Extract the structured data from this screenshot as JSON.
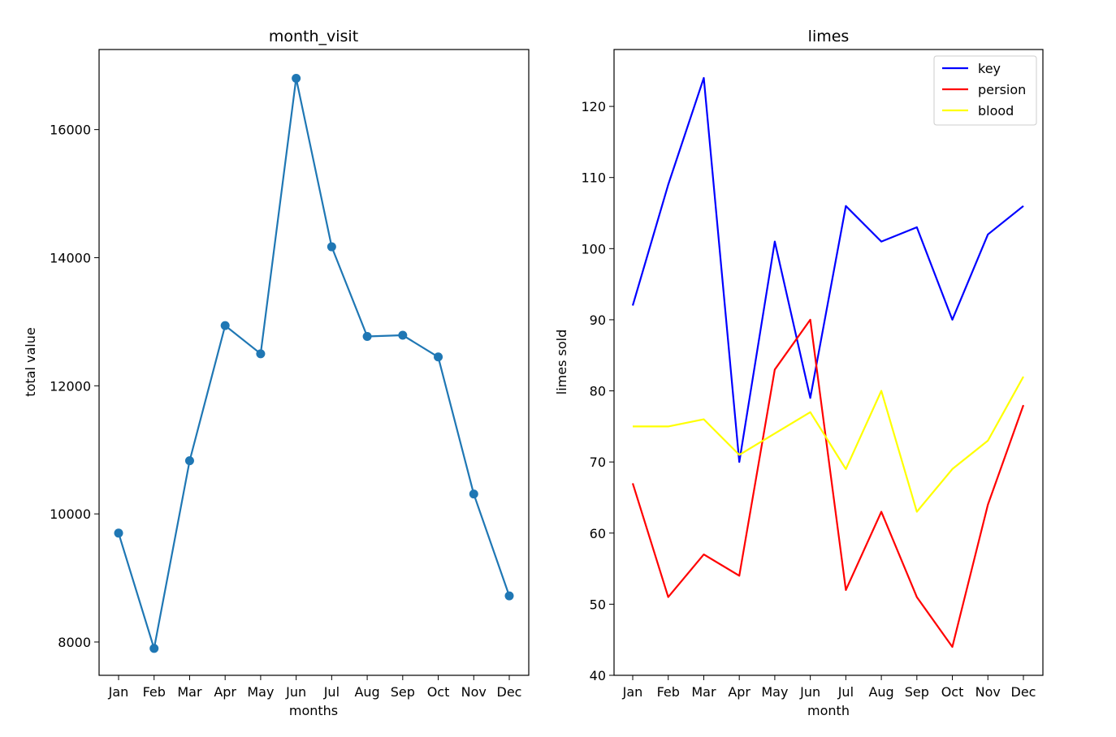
{
  "chart_data": [
    {
      "type": "line",
      "title": "month_visit",
      "xlabel": "months",
      "ylabel": "total value",
      "categories": [
        "Jan",
        "Feb",
        "Mar",
        "Apr",
        "May",
        "Jun",
        "Jul",
        "Aug",
        "Sep",
        "Oct",
        "Nov",
        "Dec"
      ],
      "series": [
        {
          "values": [
            9700,
            7900,
            10830,
            12940,
            12500,
            16800,
            14170,
            12770,
            12790,
            12450,
            10310,
            8720
          ],
          "color": "#1f77b4",
          "marker": "circle"
        }
      ],
      "yticks": [
        8000,
        10000,
        12000,
        14000,
        16000
      ],
      "ylim": [
        7480,
        17250
      ],
      "grid": false
    },
    {
      "type": "line",
      "title": "limes",
      "xlabel": "month",
      "ylabel": "limes sold",
      "categories": [
        "Jan",
        "Feb",
        "Mar",
        "Apr",
        "May",
        "Jun",
        "Jul",
        "Aug",
        "Sep",
        "Oct",
        "Nov",
        "Dec"
      ],
      "series": [
        {
          "name": "key",
          "values": [
            92,
            109,
            124,
            70,
            101,
            79,
            106,
            101,
            103,
            90,
            102,
            106
          ],
          "color": "#0000ff"
        },
        {
          "name": "persion",
          "values": [
            67,
            51,
            57,
            54,
            83,
            90,
            52,
            63,
            51,
            44,
            64,
            78
          ],
          "color": "#ff0000"
        },
        {
          "name": "blood",
          "values": [
            75,
            75,
            76,
            71,
            74,
            77,
            69,
            80,
            63,
            69,
            73,
            82
          ],
          "color": "#ffff00"
        }
      ],
      "yticks": [
        40,
        50,
        60,
        70,
        80,
        90,
        100,
        110,
        120
      ],
      "ylim": [
        40,
        128
      ],
      "legend": "top-right",
      "grid": false
    }
  ]
}
